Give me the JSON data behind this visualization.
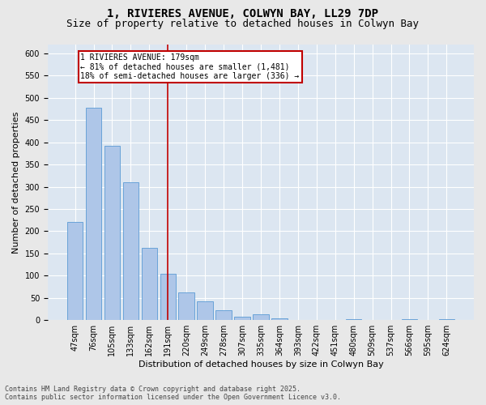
{
  "title_line1": "1, RIVIERES AVENUE, COLWYN BAY, LL29 7DP",
  "title_line2": "Size of property relative to detached houses in Colwyn Bay",
  "xlabel": "Distribution of detached houses by size in Colwyn Bay",
  "ylabel": "Number of detached properties",
  "categories": [
    "47sqm",
    "76sqm",
    "105sqm",
    "133sqm",
    "162sqm",
    "191sqm",
    "220sqm",
    "249sqm",
    "278sqm",
    "307sqm",
    "335sqm",
    "364sqm",
    "393sqm",
    "422sqm",
    "451sqm",
    "480sqm",
    "509sqm",
    "537sqm",
    "566sqm",
    "595sqm",
    "624sqm"
  ],
  "values": [
    220,
    478,
    393,
    310,
    163,
    105,
    62,
    42,
    23,
    8,
    13,
    4,
    0,
    0,
    0,
    3,
    0,
    0,
    3,
    0,
    3
  ],
  "bar_color": "#aec6e8",
  "bar_edge_color": "#5b9bd5",
  "vline_x_index": 5,
  "vline_color": "#c00000",
  "annotation_line1": "1 RIVIERES AVENUE: 179sqm",
  "annotation_line2": "← 81% of detached houses are smaller (1,481)",
  "annotation_line3": "18% of semi-detached houses are larger (336) →",
  "annotation_box_color": "#c00000",
  "ylim": [
    0,
    620
  ],
  "yticks": [
    0,
    50,
    100,
    150,
    200,
    250,
    300,
    350,
    400,
    450,
    500,
    550,
    600
  ],
  "background_color": "#dce6f1",
  "fig_background_color": "#e8e8e8",
  "footer_line1": "Contains HM Land Registry data © Crown copyright and database right 2025.",
  "footer_line2": "Contains public sector information licensed under the Open Government Licence v3.0.",
  "title_fontsize": 10,
  "subtitle_fontsize": 9,
  "axis_label_fontsize": 8,
  "tick_fontsize": 7,
  "annotation_fontsize": 7,
  "footer_fontsize": 6
}
